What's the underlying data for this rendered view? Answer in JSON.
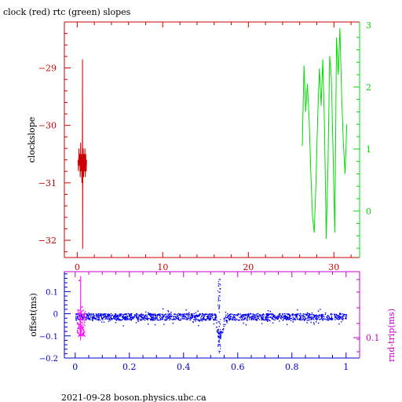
{
  "chart_data": [
    {
      "type": "line",
      "title": "clock (red) rtc (green) slopes",
      "ylabel": "clockslope",
      "xlim": [
        -1.5,
        33
      ],
      "ylim": [
        -32.3,
        -28.2
      ],
      "y2lim": [
        -0.75,
        3.05
      ],
      "xticks": [
        0,
        10,
        20,
        30
      ],
      "yticks": [
        -29,
        -30,
        -31,
        -32
      ],
      "y2ticks": [
        0,
        1,
        2,
        3
      ],
      "colors": {
        "clock": "#cc0000",
        "rtc": "#00dd00",
        "axis": "#cc0000",
        "axis2": "#00dd00"
      },
      "series": [
        {
          "axis": "left",
          "x": [
            0.1,
            0.15,
            0.2,
            0.25,
            0.3,
            0.35,
            0.4,
            0.45,
            0.5,
            0.55,
            0.6,
            0.62,
            0.64,
            0.66,
            0.7,
            0.75,
            0.8,
            0.85,
            0.9,
            0.95,
            1.0,
            1.05,
            1.1
          ],
          "y": [
            -30.6,
            -30.8,
            -30.4,
            -30.7,
            -30.5,
            -30.9,
            -30.3,
            -30.8,
            -30.5,
            -31.0,
            -30.6,
            -28.85,
            -32.15,
            -30.6,
            -30.4,
            -30.9,
            -30.5,
            -30.8,
            -30.4,
            -30.9,
            -30.5,
            -30.8,
            -30.6
          ]
        },
        {
          "axis": "right",
          "x": [
            26.3,
            26.5,
            26.7,
            26.9,
            27.1,
            27.3,
            27.5,
            27.7,
            27.9,
            28.1,
            28.3,
            28.5,
            28.7,
            28.9,
            29.1,
            29.3,
            29.5,
            29.7,
            29.9,
            30.1,
            30.3,
            30.5,
            30.7,
            30.9,
            31.1,
            31.3,
            31.5
          ],
          "y": [
            1.05,
            2.35,
            1.6,
            2.05,
            1.5,
            0.6,
            -0.1,
            -0.35,
            0.45,
            1.5,
            2.3,
            1.7,
            2.45,
            1.35,
            -0.45,
            0.7,
            2.5,
            2.15,
            0.95,
            -0.35,
            2.8,
            2.2,
            2.95,
            1.9,
            1.1,
            0.6,
            1.4
          ]
        }
      ]
    },
    {
      "type": "scatter",
      "ylabel": "offset(ms)",
      "y2label": "rnd-trip(ms)",
      "xlim": [
        -0.04,
        1.05
      ],
      "ylim": [
        -0.2,
        0.19
      ],
      "xticks": [
        "0",
        "0.2",
        "0.4",
        "0.6",
        "0.8",
        "1"
      ],
      "yticks": [
        "0.1",
        "0",
        "-0.1",
        "-0.2"
      ],
      "y2ticks": [
        "0.1"
      ],
      "colors": {
        "offset": "#0000ee",
        "rndtrip": "#ff00ff",
        "axis": "#0000cc",
        "axis2": "#cc00cc"
      },
      "series": [
        {
          "name": "offset",
          "x": [
            0,
            0.1,
            0.2,
            0.3,
            0.4,
            0.5,
            0.52,
            0.53,
            0.54,
            0.55,
            0.6,
            0.7,
            0.8,
            0.9,
            1.0
          ],
          "y": [
            -0.01,
            -0.02,
            -0.01,
            -0.02,
            -0.01,
            -0.02,
            -0.04,
            -0.12,
            -0.08,
            -0.02,
            -0.01,
            -0.02,
            -0.01,
            -0.02,
            -0.01
          ]
        },
        {
          "name": "rnd-trip",
          "x": [
            0.01,
            0.015,
            0.02,
            0.025,
            0.03
          ],
          "y": [
            0.0,
            0.15,
            -0.08,
            0.03,
            -0.09
          ]
        }
      ]
    }
  ],
  "footer": "2021-09-28  boson.physics.ubc.ca"
}
